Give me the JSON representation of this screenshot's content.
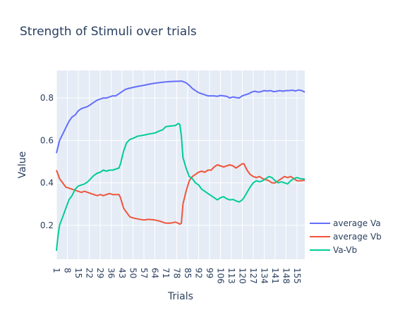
{
  "chart_data": {
    "type": "line",
    "title": "Strength of Stimuli over trials",
    "xlabel": "Trials",
    "ylabel": "Value",
    "xlim": [
      1,
      160
    ],
    "ylim": [
      0.04,
      0.93
    ],
    "xticks": [
      1,
      8,
      15,
      22,
      29,
      36,
      43,
      50,
      57,
      64,
      71,
      78,
      85,
      92,
      99,
      106,
      113,
      120,
      127,
      134,
      141,
      148,
      155
    ],
    "yticks": [
      0.2,
      0.4,
      0.6,
      0.8
    ],
    "grid": true,
    "legend_position": "right-bottom",
    "series": [
      {
        "name": "average Va",
        "color": "#636efa",
        "x": [
          1,
          3,
          5,
          7,
          9,
          11,
          13,
          15,
          17,
          19,
          21,
          23,
          25,
          27,
          29,
          31,
          33,
          35,
          37,
          39,
          41,
          43,
          45,
          47,
          50,
          53,
          57,
          60,
          64,
          67,
          71,
          74,
          78,
          81,
          82,
          84,
          86,
          88,
          90,
          92,
          94,
          96,
          98,
          100,
          102,
          104,
          106,
          108,
          110,
          112,
          114,
          116,
          118,
          120,
          122,
          124,
          126,
          128,
          130,
          132,
          134,
          136,
          138,
          140,
          142,
          144,
          146,
          148,
          150,
          152,
          154,
          156,
          158,
          160
        ],
        "y": [
          0.54,
          0.6,
          0.63,
          0.66,
          0.69,
          0.71,
          0.72,
          0.74,
          0.75,
          0.755,
          0.76,
          0.77,
          0.78,
          0.79,
          0.795,
          0.8,
          0.8,
          0.805,
          0.81,
          0.81,
          0.82,
          0.83,
          0.84,
          0.845,
          0.85,
          0.855,
          0.86,
          0.865,
          0.87,
          0.873,
          0.876,
          0.878,
          0.879,
          0.88,
          0.878,
          0.872,
          0.86,
          0.845,
          0.835,
          0.825,
          0.82,
          0.815,
          0.81,
          0.81,
          0.81,
          0.808,
          0.812,
          0.81,
          0.808,
          0.8,
          0.805,
          0.802,
          0.8,
          0.81,
          0.815,
          0.82,
          0.828,
          0.832,
          0.828,
          0.83,
          0.835,
          0.833,
          0.835,
          0.83,
          0.832,
          0.835,
          0.832,
          0.835,
          0.835,
          0.837,
          0.833,
          0.838,
          0.835,
          0.828
        ]
      },
      {
        "name": "average Vb",
        "color": "#ef553b",
        "x": [
          1,
          3,
          5,
          7,
          9,
          11,
          13,
          15,
          17,
          19,
          21,
          23,
          25,
          27,
          29,
          31,
          33,
          35,
          37,
          39,
          41,
          42,
          44,
          46,
          48,
          50,
          53,
          57,
          60,
          64,
          67,
          69,
          71,
          74,
          77,
          79,
          80,
          81,
          82,
          84,
          86,
          88,
          90,
          92,
          94,
          96,
          98,
          100,
          102,
          104,
          106,
          108,
          110,
          112,
          114,
          116,
          118,
          120,
          121,
          123,
          125,
          127,
          129,
          131,
          133,
          135,
          137,
          139,
          141,
          143,
          145,
          147,
          149,
          151,
          153,
          155,
          157,
          160
        ],
        "y": [
          0.46,
          0.42,
          0.4,
          0.38,
          0.375,
          0.37,
          0.365,
          0.36,
          0.355,
          0.36,
          0.355,
          0.35,
          0.345,
          0.34,
          0.345,
          0.34,
          0.345,
          0.35,
          0.345,
          0.345,
          0.345,
          0.33,
          0.28,
          0.26,
          0.24,
          0.235,
          0.23,
          0.225,
          0.228,
          0.225,
          0.22,
          0.215,
          0.21,
          0.21,
          0.215,
          0.21,
          0.205,
          0.21,
          0.3,
          0.36,
          0.41,
          0.43,
          0.44,
          0.45,
          0.455,
          0.45,
          0.46,
          0.46,
          0.475,
          0.485,
          0.48,
          0.475,
          0.48,
          0.485,
          0.48,
          0.47,
          0.48,
          0.49,
          0.49,
          0.46,
          0.44,
          0.43,
          0.425,
          0.43,
          0.42,
          0.415,
          0.41,
          0.4,
          0.4,
          0.41,
          0.42,
          0.43,
          0.425,
          0.43,
          0.42,
          0.41,
          0.41,
          0.412
        ]
      },
      {
        "name": "Va-Vb",
        "color": "#00cc96",
        "x": [
          1,
          2,
          3,
          5,
          7,
          9,
          11,
          13,
          15,
          17,
          19,
          21,
          23,
          25,
          27,
          29,
          31,
          33,
          35,
          37,
          39,
          41,
          42,
          44,
          46,
          48,
          50,
          53,
          57,
          60,
          64,
          67,
          69,
          71,
          74,
          77,
          79,
          80,
          81,
          82,
          84,
          86,
          88,
          90,
          92,
          94,
          96,
          98,
          100,
          102,
          104,
          106,
          108,
          110,
          112,
          114,
          116,
          118,
          120,
          121,
          123,
          125,
          127,
          129,
          131,
          133,
          135,
          137,
          139,
          141,
          143,
          145,
          147,
          149,
          151,
          153,
          155,
          157,
          160
        ],
        "y": [
          0.08,
          0.15,
          0.2,
          0.24,
          0.28,
          0.32,
          0.34,
          0.37,
          0.385,
          0.39,
          0.395,
          0.405,
          0.42,
          0.435,
          0.445,
          0.45,
          0.46,
          0.455,
          0.46,
          0.46,
          0.465,
          0.47,
          0.49,
          0.55,
          0.59,
          0.605,
          0.61,
          0.62,
          0.625,
          0.63,
          0.635,
          0.645,
          0.65,
          0.665,
          0.668,
          0.67,
          0.68,
          0.675,
          0.62,
          0.52,
          0.47,
          0.43,
          0.42,
          0.4,
          0.39,
          0.37,
          0.36,
          0.35,
          0.34,
          0.33,
          0.32,
          0.33,
          0.335,
          0.325,
          0.32,
          0.322,
          0.315,
          0.31,
          0.32,
          0.33,
          0.355,
          0.38,
          0.4,
          0.41,
          0.405,
          0.41,
          0.42,
          0.43,
          0.425,
          0.41,
          0.4,
          0.405,
          0.4,
          0.395,
          0.41,
          0.42,
          0.425,
          0.42,
          0.418
        ]
      }
    ]
  }
}
